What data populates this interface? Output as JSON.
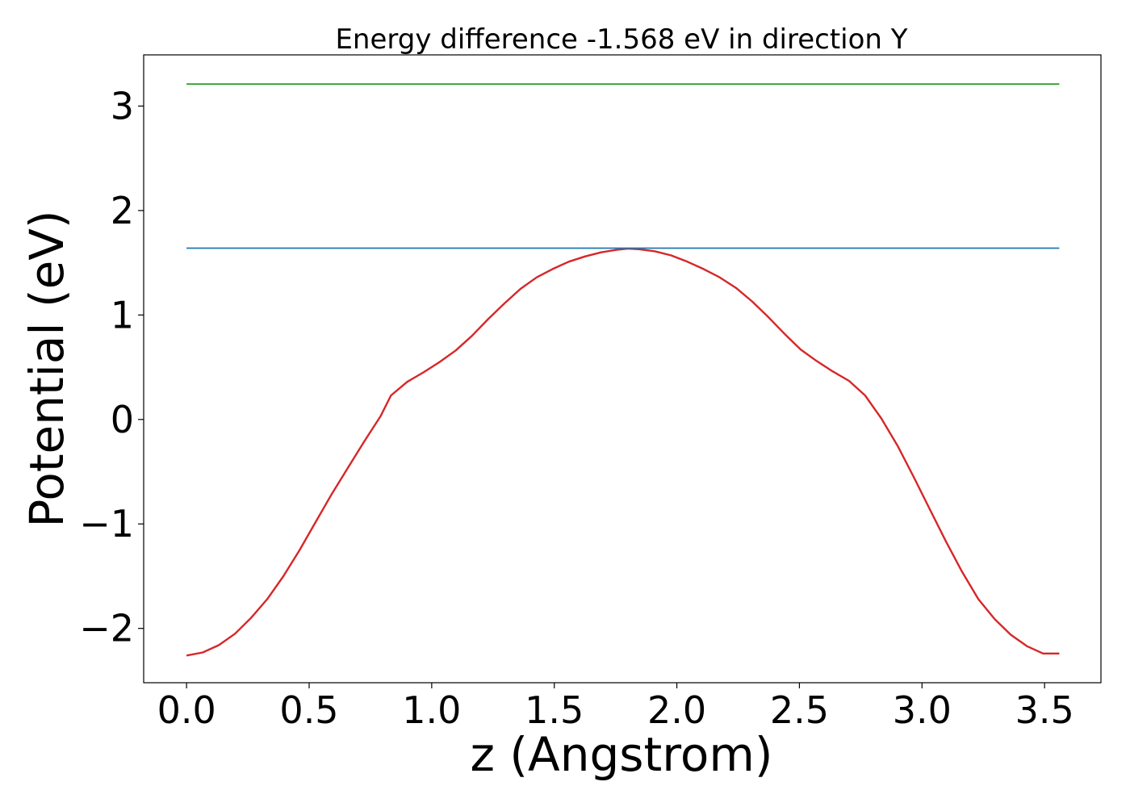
{
  "chart_data": {
    "type": "line",
    "title": "Energy difference -1.568 eV in direction Y",
    "xlabel": "z (Angstrom)",
    "ylabel": "Potential (eV)",
    "xlim": [
      -0.175,
      3.73
    ],
    "ylim": [
      -2.52,
      3.49
    ],
    "grid": false,
    "x_ticks": [
      {
        "value": 0.0,
        "label": "0.0"
      },
      {
        "value": 0.5,
        "label": "0.5"
      },
      {
        "value": 1.0,
        "label": "1.0"
      },
      {
        "value": 1.5,
        "label": "1.5"
      },
      {
        "value": 2.0,
        "label": "2.0"
      },
      {
        "value": 2.5,
        "label": "2.5"
      },
      {
        "value": 3.0,
        "label": "3.0"
      },
      {
        "value": 3.5,
        "label": "3.5"
      }
    ],
    "y_ticks": [
      {
        "value": -2,
        "label": "−2"
      },
      {
        "value": -1,
        "label": "−1"
      },
      {
        "value": 0,
        "label": "0"
      },
      {
        "value": 1,
        "label": "1"
      },
      {
        "value": 2,
        "label": "2"
      },
      {
        "value": 3,
        "label": "3"
      }
    ],
    "series": [
      {
        "color": "#d62728",
        "x": [
          0.0,
          0.066,
          0.132,
          0.198,
          0.263,
          0.329,
          0.395,
          0.461,
          0.527,
          0.593,
          0.659,
          0.725,
          0.791,
          0.834,
          0.9,
          0.966,
          1.032,
          1.098,
          1.164,
          1.23,
          1.296,
          1.362,
          1.428,
          1.493,
          1.559,
          1.625,
          1.691,
          1.757,
          1.8,
          1.845,
          1.911,
          1.977,
          2.043,
          2.109,
          2.175,
          2.241,
          2.307,
          2.373,
          2.439,
          2.505,
          2.57,
          2.636,
          2.702,
          2.768,
          2.834,
          2.9,
          2.966,
          3.032,
          3.098,
          3.164,
          3.23,
          3.296,
          3.362,
          3.428,
          3.494,
          3.56
        ],
        "y": [
          -2.26,
          -2.23,
          -2.16,
          -2.05,
          -1.9,
          -1.72,
          -1.5,
          -1.25,
          -0.98,
          -0.71,
          -0.46,
          -0.21,
          0.03,
          0.23,
          0.36,
          0.45,
          0.55,
          0.66,
          0.8,
          0.96,
          1.11,
          1.25,
          1.36,
          1.44,
          1.51,
          1.56,
          1.6,
          1.625,
          1.635,
          1.63,
          1.61,
          1.57,
          1.51,
          1.44,
          1.36,
          1.26,
          1.13,
          0.98,
          0.82,
          0.67,
          0.56,
          0.46,
          0.37,
          0.23,
          0.01,
          -0.25,
          -0.55,
          -0.86,
          -1.17,
          -1.46,
          -1.72,
          -1.91,
          -2.06,
          -2.17,
          -2.24,
          -2.24
        ]
      },
      {
        "color": "#1f77b4",
        "x": [
          0.0,
          3.56
        ],
        "y": [
          1.64,
          1.64
        ]
      },
      {
        "color": "#2ca02c",
        "x": [
          0.0,
          3.56
        ],
        "y": [
          3.21,
          3.21
        ]
      }
    ]
  }
}
